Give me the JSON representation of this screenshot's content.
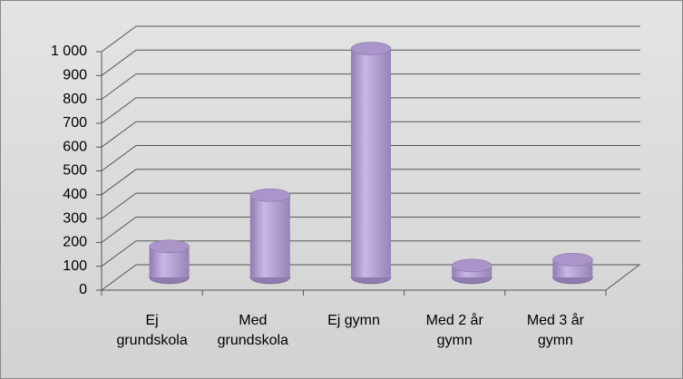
{
  "chart_data": {
    "type": "bar",
    "categories": [
      [
        "Ej",
        "grundskola"
      ],
      [
        "Med",
        "grundskola"
      ],
      [
        "Ej gymn"
      ],
      [
        "Med 2 år",
        "gymn"
      ],
      [
        "Med 3 år",
        "gymn"
      ]
    ],
    "values": [
      130,
      345,
      960,
      50,
      75
    ],
    "color": "#b9a6d8",
    "ylim": [
      0,
      1000
    ],
    "yticks": [
      0,
      100,
      200,
      300,
      400,
      500,
      600,
      700,
      800,
      900,
      {
        "value": 1000,
        "label": "1 000"
      }
    ],
    "grid": true
  }
}
